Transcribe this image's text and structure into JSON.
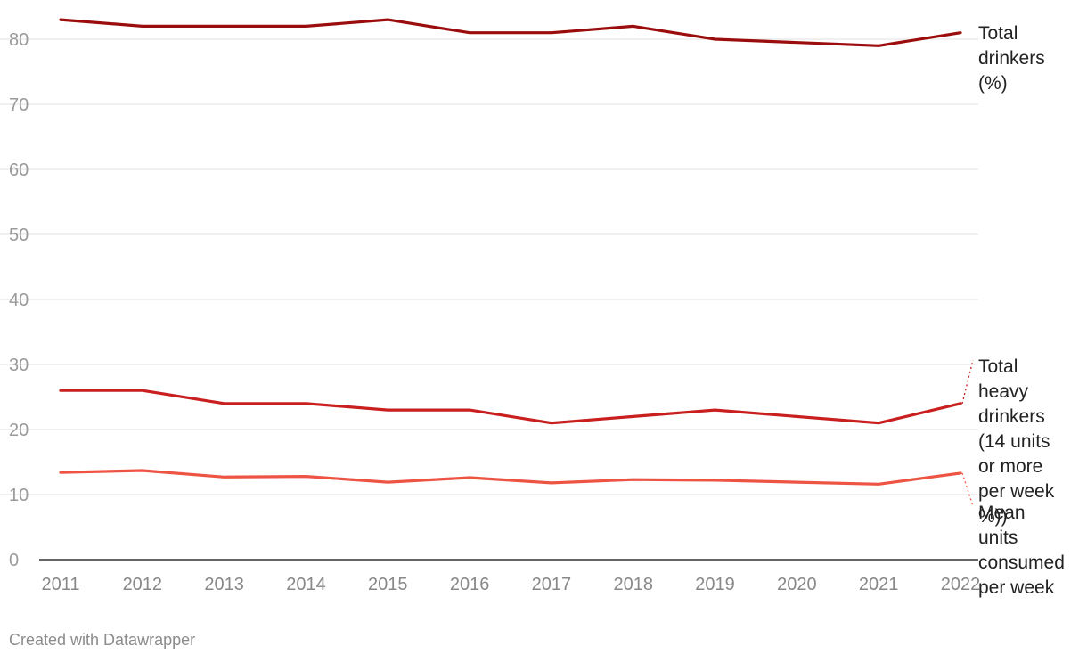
{
  "chart_data": {
    "type": "line",
    "x": [
      2011,
      2012,
      2013,
      2014,
      2015,
      2016,
      2017,
      2018,
      2019,
      2020,
      2021,
      2022
    ],
    "x_tick_labels": [
      "2011",
      "2012",
      "2013",
      "2014",
      "2015",
      "2016",
      "2017",
      "2018",
      "2019",
      "2020",
      "2021",
      "2022"
    ],
    "ylim": [
      0,
      83
    ],
    "y_ticks": [
      0,
      10,
      20,
      30,
      40,
      50,
      60,
      70,
      80
    ],
    "y_tick_labels": [
      "0",
      "10",
      "20",
      "30",
      "40",
      "50",
      "60",
      "70",
      "80"
    ],
    "grid": "horizontal",
    "series": [
      {
        "name": "Total drinkers (%)",
        "label_lines": [
          "Total",
          "drinkers",
          "(%)"
        ],
        "color": "#9b0d0d",
        "values": [
          83,
          82,
          82,
          82,
          83,
          81,
          81,
          82,
          80,
          null,
          79,
          81
        ]
      },
      {
        "name": "Total heavy drinkers (14 units or more per week %))",
        "label_lines": [
          "Total",
          "heavy",
          "drinkers",
          "(14 units",
          "or more",
          "per week",
          "%))"
        ],
        "color": "#c91f1f",
        "values": [
          26,
          26,
          24,
          24,
          23,
          23,
          21,
          22,
          23,
          null,
          21,
          24
        ]
      },
      {
        "name": "Mean units consumed per week",
        "label_lines": [
          "Mean",
          "units",
          "consumed",
          "per week"
        ],
        "color": "#ee5444",
        "values": [
          13.4,
          13.7,
          12.7,
          12.8,
          11.9,
          12.6,
          11.8,
          12.3,
          12.2,
          null,
          11.6,
          13.3
        ]
      }
    ]
  },
  "footer": {
    "credit": "Created with Datawrapper"
  }
}
